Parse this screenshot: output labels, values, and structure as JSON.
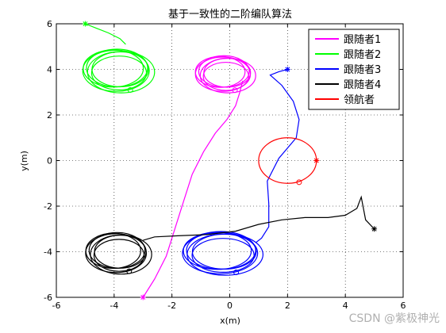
{
  "chart_data": {
    "type": "line",
    "title": "基于一致性的二阶编队算法",
    "xlabel": "x(m)",
    "ylabel": "y(m)",
    "xlim": [
      -6,
      6
    ],
    "ylim": [
      -6,
      6
    ],
    "xticks": [
      -6,
      -4,
      -2,
      0,
      2,
      4,
      6
    ],
    "yticks": [
      -6,
      -4,
      -2,
      0,
      2,
      4,
      6
    ],
    "grid": true,
    "legend_position": "top-right",
    "series": [
      {
        "name": "跟随者1",
        "color": "#ff00ff",
        "start": [
          -3,
          -6
        ],
        "path": [
          [
            -3,
            -6
          ],
          [
            -2.6,
            -5.2
          ],
          [
            -2.2,
            -4.2
          ],
          [
            -1.9,
            -3.0
          ],
          [
            -1.6,
            -1.8
          ],
          [
            -1.3,
            -0.6
          ],
          [
            -0.9,
            0.4
          ],
          [
            -0.5,
            1.2
          ],
          [
            -0.1,
            1.8
          ],
          [
            0.2,
            2.4
          ],
          [
            0.35,
            3.0
          ],
          [
            0.45,
            3.5
          ]
        ],
        "orbit": {
          "cx": -0.2,
          "cy": 3.8,
          "rx": 0.95,
          "ry": 0.75
        }
      },
      {
        "name": "跟随者2",
        "color": "#00ff00",
        "start": [
          -5,
          6
        ],
        "path": [
          [
            -5,
            6
          ],
          [
            -4.6,
            5.8
          ],
          [
            -4.2,
            5.6
          ],
          [
            -3.8,
            5.35
          ],
          [
            -3.6,
            5.1
          ]
        ],
        "orbit": {
          "cx": -3.9,
          "cy": 3.95,
          "rx": 1.15,
          "ry": 0.9
        }
      },
      {
        "name": "跟随者3",
        "color": "#0000ff",
        "start": [
          2,
          4
        ],
        "path": [
          [
            2,
            4
          ],
          [
            1.7,
            3.9
          ],
          [
            1.4,
            3.75
          ],
          [
            1.8,
            3.3
          ],
          [
            2.2,
            2.6
          ],
          [
            2.4,
            1.8
          ],
          [
            2.3,
            1.0
          ],
          [
            1.7,
            0.1
          ],
          [
            1.3,
            -0.9
          ],
          [
            1.35,
            -1.9
          ],
          [
            1.35,
            -2.9
          ],
          [
            1.1,
            -3.4
          ],
          [
            0.9,
            -3.6
          ]
        ],
        "orbit": {
          "cx": -0.3,
          "cy": -4.05,
          "rx": 1.3,
          "ry": 0.9
        }
      },
      {
        "name": "跟随者4",
        "color": "#000000",
        "start": [
          5,
          -3
        ],
        "path": [
          [
            5,
            -3
          ],
          [
            4.7,
            -2.6
          ],
          [
            4.55,
            -1.6
          ],
          [
            4.4,
            -2.1
          ],
          [
            4.0,
            -2.4
          ],
          [
            3.4,
            -2.5
          ],
          [
            2.6,
            -2.5
          ],
          [
            1.8,
            -2.6
          ],
          [
            1.0,
            -2.8
          ],
          [
            0.2,
            -3.1
          ],
          [
            -0.8,
            -3.25
          ],
          [
            -1.8,
            -3.3
          ],
          [
            -2.6,
            -3.35
          ],
          [
            -3.0,
            -3.5
          ]
        ],
        "orbit": {
          "cx": -3.9,
          "cy": -4.05,
          "rx": 1.05,
          "ry": 0.85
        }
      },
      {
        "name": "领航者",
        "color": "#ff0000",
        "start": [
          3,
          0
        ],
        "path": [],
        "orbit": {
          "cx": 2.0,
          "cy": 0.0,
          "rx": 1.0,
          "ry": 1.0
        }
      }
    ]
  },
  "watermark": "CSDN @紫极神光"
}
